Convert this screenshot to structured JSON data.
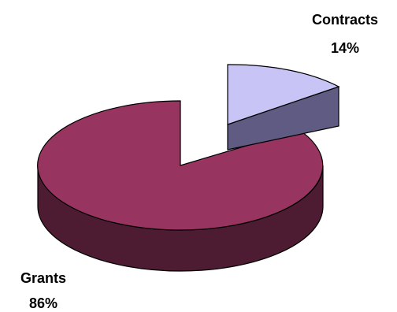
{
  "chart_data": {
    "type": "pie",
    "style": "3d-exploded",
    "categories": [
      "Contracts",
      "Grants"
    ],
    "values": [
      14,
      86
    ],
    "units": "%",
    "slices": [
      {
        "name": "Contracts",
        "value": 14,
        "label_name": "Contracts",
        "label_value": "14%",
        "exploded": true,
        "color_top": "#c8c4f6",
        "color_side": "#5f5b82"
      },
      {
        "name": "Grants",
        "value": 86,
        "label_name": "Grants",
        "label_value": "86%",
        "exploded": false,
        "color_top": "#983460",
        "color_side": "#4e1c32"
      }
    ],
    "legend": "none"
  }
}
